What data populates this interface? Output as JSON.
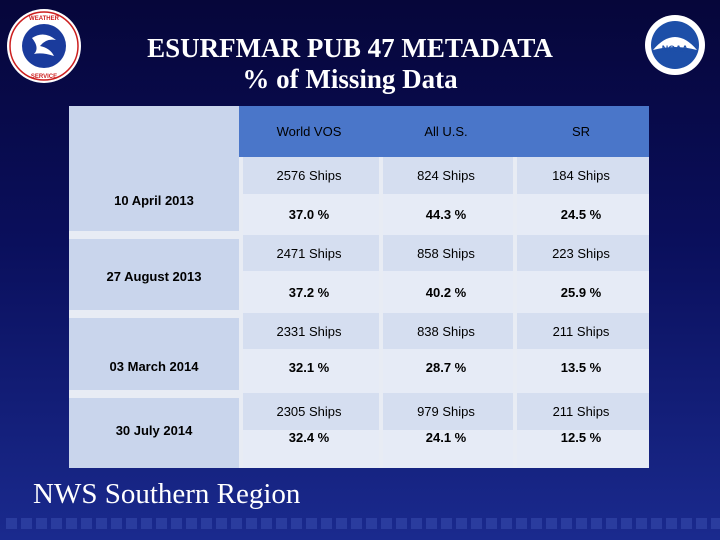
{
  "title_line1": "ESURFMAR  PUB 47  METADATA",
  "title_line2": "% of Missing Data",
  "headers": [
    "World VOS",
    "All U.S.",
    "SR"
  ],
  "rows": [
    {
      "date": "10 April 2013",
      "ships": [
        "2576 Ships",
        "824 Ships",
        "184 Ships"
      ],
      "pct": [
        "37.0 %",
        "44.3 %",
        "24.5 %"
      ]
    },
    {
      "date": "27 August 2013",
      "ships": [
        "2471 Ships",
        "858 Ships",
        "223 Ships"
      ],
      "pct": [
        "37.2 %",
        "40.2 %",
        "25.9 %"
      ]
    },
    {
      "date": "03 March 2014",
      "ships": [
        "2331 Ships",
        "838  Ships",
        "211  Ships"
      ],
      "pct": [
        "32.1 %",
        "28.7 %",
        "13.5 %"
      ]
    },
    {
      "date": "30 July 2014",
      "ships": [
        "2305  Ships",
        "979  Ships",
        "211  Ships"
      ],
      "pct": [
        "32.4 %",
        "24.1 %",
        "12.5 %"
      ]
    }
  ],
  "footer": "NWS Southern Region",
  "nws_logo_text": "NATIONAL WEATHER SERVICE",
  "noaa_logo_text": "NOAA",
  "colors": {
    "background": "#0a0f5c",
    "header": "#4a76c9",
    "row_label": "#c9d5ec",
    "cell": "#d5def0"
  }
}
